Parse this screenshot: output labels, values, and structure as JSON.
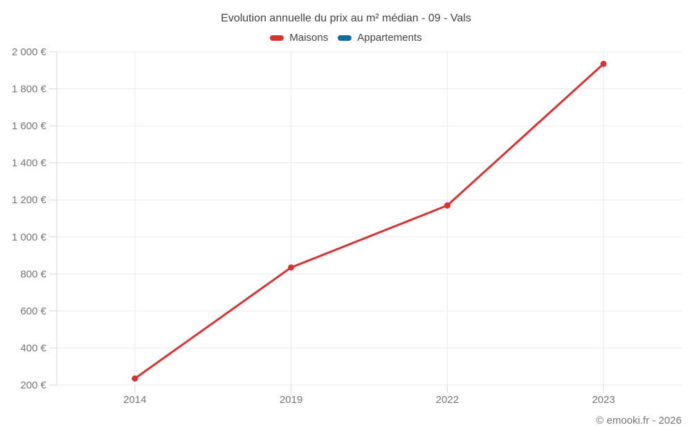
{
  "title": "Evolution annuelle du prix au m² médian - 09 - Vals",
  "footer": "© emooki.fr - 2026",
  "chart_data": {
    "type": "line",
    "title": "Evolution annuelle du prix au m² médian - 09 - Vals",
    "categories": [
      "2014",
      "2019",
      "2022",
      "2023"
    ],
    "series": [
      {
        "name": "Maisons",
        "color": "#d93030",
        "values": [
          235,
          835,
          1170,
          1935
        ]
      },
      {
        "name": "Appartements",
        "color": "#16699c",
        "values": []
      }
    ],
    "xlabel": "",
    "ylabel": "",
    "ylim": [
      200,
      2000
    ],
    "ytick_step": 200,
    "ytick_suffix": " €",
    "grid": true,
    "legend_position": "top",
    "colors": {
      "grid_line": "#e9e9e9",
      "axis_line": "#d6d6d6",
      "tick_text": "#757575",
      "title_text": "#424242"
    }
  }
}
